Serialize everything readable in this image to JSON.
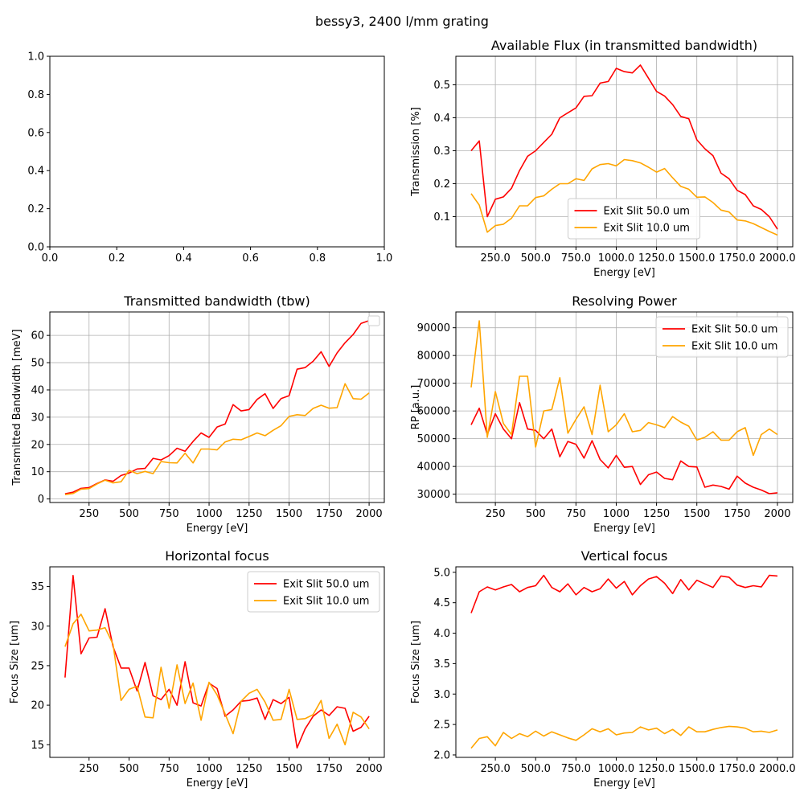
{
  "figure_title": "bessy3, 2400 l/mm grating",
  "colors": {
    "red": "#ff0000",
    "orange": "#ffa500",
    "grid": "#b0b0b0",
    "axis": "#000000"
  },
  "chart_data": [
    {
      "id": "empty",
      "type": "line",
      "title": "",
      "xlabel": "",
      "ylabel": "",
      "xlim": [
        0,
        1
      ],
      "ylim": [
        0,
        1
      ],
      "xticks": [
        0.0,
        0.2,
        0.4,
        0.6,
        0.8,
        1.0
      ],
      "yticks": [
        0.0,
        0.2,
        0.4,
        0.6,
        0.8,
        1.0
      ],
      "tick_format": "fixed1",
      "grid": false,
      "legend": null,
      "series": []
    },
    {
      "id": "flux",
      "type": "line",
      "title": "Available Flux (in transmitted bandwidth)",
      "xlabel": "Energy [eV]",
      "ylabel": "Transmission [%]",
      "xlim": [
        5,
        2095
      ],
      "ylim": [
        0.0085,
        0.5865
      ],
      "xticks": [
        250,
        500,
        750,
        1000,
        1250,
        1500,
        1750,
        2000
      ],
      "yticks": [
        0.1,
        0.2,
        0.3,
        0.4,
        0.5
      ],
      "tick_format": "fixed1",
      "grid": true,
      "legend": "lower-center",
      "x": [
        100,
        150,
        200,
        250,
        300,
        350,
        400,
        450,
        500,
        550,
        600,
        650,
        700,
        750,
        800,
        850,
        900,
        950,
        1000,
        1050,
        1100,
        1150,
        1200,
        1250,
        1300,
        1350,
        1400,
        1450,
        1500,
        1550,
        1600,
        1650,
        1700,
        1750,
        1800,
        1850,
        1900,
        1950,
        2000
      ],
      "series": [
        {
          "name": "Exit Slit 50.0 um",
          "color": "#ff0000",
          "values": [
            0.3,
            0.33,
            0.1,
            0.153,
            0.16,
            0.186,
            0.24,
            0.283,
            0.3,
            0.325,
            0.35,
            0.4,
            0.415,
            0.43,
            0.465,
            0.467,
            0.505,
            0.51,
            0.55,
            0.54,
            0.536,
            0.56,
            0.52,
            0.48,
            0.466,
            0.44,
            0.404,
            0.397,
            0.333,
            0.306,
            0.285,
            0.232,
            0.215,
            0.18,
            0.167,
            0.133,
            0.122,
            0.1,
            0.062
          ]
        },
        {
          "name": "Exit Slit 10.0 um",
          "color": "#ffa500",
          "values": [
            0.17,
            0.135,
            0.053,
            0.073,
            0.077,
            0.095,
            0.133,
            0.133,
            0.158,
            0.163,
            0.183,
            0.2,
            0.2,
            0.215,
            0.21,
            0.245,
            0.258,
            0.261,
            0.254,
            0.273,
            0.27,
            0.263,
            0.25,
            0.235,
            0.246,
            0.218,
            0.192,
            0.183,
            0.159,
            0.16,
            0.143,
            0.12,
            0.114,
            0.09,
            0.087,
            0.079,
            0.067,
            0.055,
            0.044
          ]
        }
      ]
    },
    {
      "id": "bandwidth",
      "type": "line",
      "title": "Transmitted bandwidth (tbw)",
      "xlabel": "Energy [eV]",
      "ylabel": "Transmitted Bandwidth [meV]",
      "xlim": [
        5,
        2095
      ],
      "ylim": [
        -1.3,
        68.6
      ],
      "xticks": [
        250,
        500,
        750,
        1000,
        1250,
        1500,
        1750,
        2000
      ],
      "yticks": [
        0,
        10,
        20,
        30,
        40,
        50,
        60
      ],
      "tick_format": "int",
      "grid": true,
      "legend": "top-right-empty",
      "x": [
        100,
        150,
        200,
        250,
        300,
        350,
        400,
        450,
        500,
        550,
        600,
        650,
        700,
        750,
        800,
        850,
        900,
        950,
        1000,
        1050,
        1100,
        1150,
        1200,
        1250,
        1300,
        1350,
        1400,
        1450,
        1500,
        1550,
        1600,
        1650,
        1700,
        1750,
        1800,
        1850,
        1900,
        1950,
        2000
      ],
      "series": [
        {
          "name": "",
          "color": "#ff0000",
          "values": [
            1.9,
            2.5,
            3.9,
            4.2,
            5.7,
            7.0,
            6.5,
            8.6,
            9.5,
            11.0,
            11.2,
            14.9,
            14.3,
            15.9,
            18.6,
            17.5,
            21.1,
            24.2,
            22.6,
            26.4,
            27.5,
            34.6,
            32.3,
            32.8,
            36.5,
            38.6,
            33.2,
            36.8,
            37.9,
            47.6,
            48.2,
            50.5,
            54.0,
            48.6,
            53.6,
            57.3,
            60.3,
            64.4,
            65.4
          ]
        },
        {
          "name": "",
          "color": "#ffa500",
          "values": [
            1.6,
            2.0,
            3.6,
            3.8,
            5.5,
            6.9,
            5.9,
            6.3,
            10.5,
            9.3,
            10.1,
            9.3,
            13.7,
            13.3,
            13.2,
            16.8,
            13.2,
            18.3,
            18.3,
            18.0,
            20.9,
            21.9,
            21.7,
            22.9,
            24.2,
            23.2,
            25.2,
            26.9,
            30.3,
            30.9,
            30.6,
            33.2,
            34.4,
            33.3,
            33.5,
            42.3,
            36.8,
            36.6,
            38.9
          ]
        }
      ]
    },
    {
      "id": "rp",
      "type": "line",
      "title": "Resolving Power",
      "xlabel": "Energy [eV]",
      "ylabel": "RP [a.u.]",
      "xlim": [
        5,
        2095
      ],
      "ylim": [
        27000,
        95700
      ],
      "xticks": [
        250,
        500,
        750,
        1000,
        1250,
        1500,
        1750,
        2000
      ],
      "yticks": [
        30000,
        40000,
        50000,
        60000,
        70000,
        80000,
        90000
      ],
      "tick_format": "int",
      "grid": true,
      "legend": "top-right",
      "x": [
        100,
        150,
        200,
        250,
        300,
        350,
        400,
        450,
        500,
        550,
        600,
        650,
        700,
        750,
        800,
        850,
        900,
        950,
        1000,
        1050,
        1100,
        1150,
        1200,
        1250,
        1300,
        1350,
        1400,
        1450,
        1500,
        1550,
        1600,
        1650,
        1700,
        1750,
        1800,
        1850,
        1900,
        1950,
        2000
      ],
      "series": [
        {
          "name": "Exit Slit 50.0 um",
          "color": "#ff0000",
          "values": [
            55000,
            61000,
            51500,
            59000,
            53500,
            50000,
            63000,
            53500,
            53000,
            50000,
            53500,
            43500,
            49000,
            48000,
            43000,
            49300,
            42500,
            39500,
            44000,
            39700,
            40000,
            33500,
            37000,
            38000,
            35700,
            35200,
            42000,
            40000,
            39800,
            32500,
            33300,
            32800,
            31800,
            36500,
            34000,
            32500,
            31500,
            30200,
            30500
          ]
        },
        {
          "name": "Exit Slit 10.0 um",
          "color": "#ffa500",
          "values": [
            68500,
            92500,
            50500,
            67000,
            55500,
            51500,
            72500,
            72500,
            47000,
            60000,
            60500,
            72000,
            52000,
            57000,
            61500,
            51500,
            69300,
            52500,
            55000,
            59000,
            52500,
            53000,
            55800,
            55000,
            54000,
            58000,
            56000,
            54500,
            49500,
            50500,
            52500,
            49500,
            49500,
            52500,
            54000,
            44000,
            51500,
            53500,
            51500
          ]
        }
      ]
    },
    {
      "id": "hfocus",
      "type": "line",
      "title": "Horizontal focus",
      "xlabel": "Energy [eV]",
      "ylabel": "Focus Size [um]",
      "xlim": [
        5,
        2095
      ],
      "ylim": [
        13.4,
        37.5
      ],
      "xticks": [
        250,
        500,
        750,
        1000,
        1250,
        1500,
        1750,
        2000
      ],
      "yticks": [
        15,
        20,
        25,
        30,
        35
      ],
      "tick_format": "int",
      "grid": false,
      "legend": "top-right",
      "x": [
        100,
        150,
        200,
        250,
        300,
        350,
        400,
        450,
        500,
        550,
        600,
        650,
        700,
        750,
        800,
        850,
        900,
        950,
        1000,
        1050,
        1100,
        1150,
        1200,
        1250,
        1300,
        1350,
        1400,
        1450,
        1500,
        1550,
        1600,
        1650,
        1700,
        1750,
        1800,
        1850,
        1900,
        1950,
        2000
      ],
      "series": [
        {
          "name": "Exit Slit 50.0 um",
          "color": "#ff0000",
          "values": [
            23.5,
            36.4,
            26.5,
            28.5,
            28.6,
            32.2,
            27.4,
            24.7,
            24.7,
            21.8,
            25.4,
            21.2,
            20.7,
            22.0,
            20.0,
            25.5,
            20.3,
            19.9,
            22.8,
            22.1,
            18.6,
            19.4,
            20.5,
            20.6,
            20.9,
            18.2,
            20.7,
            20.2,
            21.0,
            14.6,
            17.0,
            18.6,
            19.4,
            18.7,
            19.8,
            19.6,
            16.7,
            17.2,
            18.6
          ]
        },
        {
          "name": "Exit Slit 10.0 um",
          "color": "#ffa500",
          "values": [
            27.4,
            30.3,
            31.5,
            29.4,
            29.5,
            29.8,
            27.7,
            20.6,
            22.0,
            22.4,
            18.5,
            18.4,
            24.8,
            19.6,
            25.1,
            20.2,
            22.8,
            18.1,
            22.9,
            21.3,
            18.9,
            16.4,
            20.5,
            21.5,
            22.0,
            20.4,
            18.1,
            18.2,
            22.0,
            18.2,
            18.3,
            18.8,
            20.6,
            15.8,
            17.6,
            15.0,
            19.1,
            18.5,
            17.0
          ]
        }
      ]
    },
    {
      "id": "vfocus",
      "type": "line",
      "title": "Vertical focus",
      "xlabel": "Energy [eV]",
      "ylabel": "Focus Size [um]",
      "xlim": [
        5,
        2095
      ],
      "ylim": [
        1.96,
        5.09
      ],
      "xticks": [
        250,
        500,
        750,
        1000,
        1250,
        1500,
        1750,
        2000
      ],
      "yticks": [
        2.0,
        2.5,
        3.0,
        3.5,
        4.0,
        4.5,
        5.0
      ],
      "tick_format": "fixed1",
      "grid": false,
      "legend": null,
      "x": [
        100,
        150,
        200,
        250,
        300,
        350,
        400,
        450,
        500,
        550,
        600,
        650,
        700,
        750,
        800,
        850,
        900,
        950,
        1000,
        1050,
        1100,
        1150,
        1200,
        1250,
        1300,
        1350,
        1400,
        1450,
        1500,
        1550,
        1600,
        1650,
        1700,
        1750,
        1800,
        1850,
        1900,
        1950,
        2000
      ],
      "series": [
        {
          "name": "",
          "color": "#ff0000",
          "values": [
            4.33,
            4.68,
            4.76,
            4.71,
            4.76,
            4.8,
            4.68,
            4.75,
            4.78,
            4.95,
            4.75,
            4.68,
            4.81,
            4.63,
            4.75,
            4.68,
            4.73,
            4.89,
            4.74,
            4.85,
            4.63,
            4.78,
            4.89,
            4.93,
            4.82,
            4.65,
            4.88,
            4.71,
            4.87,
            4.81,
            4.75,
            4.94,
            4.92,
            4.79,
            4.75,
            4.78,
            4.76,
            4.95,
            4.94
          ]
        },
        {
          "name": "",
          "color": "#ffa500",
          "values": [
            2.11,
            2.27,
            2.3,
            2.15,
            2.37,
            2.27,
            2.35,
            2.3,
            2.39,
            2.31,
            2.38,
            2.33,
            2.28,
            2.24,
            2.33,
            2.43,
            2.38,
            2.43,
            2.33,
            2.36,
            2.37,
            2.46,
            2.41,
            2.44,
            2.35,
            2.42,
            2.32,
            2.46,
            2.38,
            2.38,
            2.42,
            2.45,
            2.47,
            2.46,
            2.44,
            2.38,
            2.39,
            2.37,
            2.41
          ]
        }
      ]
    }
  ]
}
